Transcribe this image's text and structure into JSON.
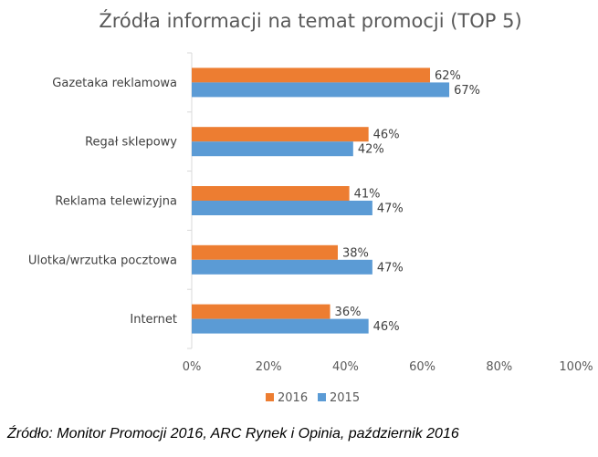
{
  "chart_data": {
    "type": "bar",
    "orientation": "horizontal",
    "title": "Źródła informacji na temat promocji (TOP 5)",
    "categories": [
      "Gazetaka reklamowa",
      "Regał sklepowy",
      "Reklama telewizyjna",
      "Ulotka/wrzutka pocztowa",
      "Internet"
    ],
    "series": [
      {
        "name": "2016",
        "color": "#ED7D31",
        "values": [
          62,
          46,
          41,
          38,
          36
        ],
        "labels": [
          "62%",
          "46%",
          "41%",
          "38%",
          "36%"
        ]
      },
      {
        "name": "2015",
        "color": "#5B9BD5",
        "values": [
          67,
          42,
          47,
          47,
          46
        ],
        "labels": [
          "67%",
          "42%",
          "47%",
          "47%",
          "46%"
        ]
      }
    ],
    "xlim": [
      0,
      100
    ],
    "ticks": [
      0,
      20,
      40,
      60,
      80,
      100
    ],
    "tick_labels": [
      "0%",
      "20%",
      "40%",
      "60%",
      "80%",
      "100%"
    ],
    "grid": false,
    "legend": "bottom"
  },
  "source": "Źródło: Monitor Promocji 2016, ARC Rynek i Opinia, październik 2016"
}
